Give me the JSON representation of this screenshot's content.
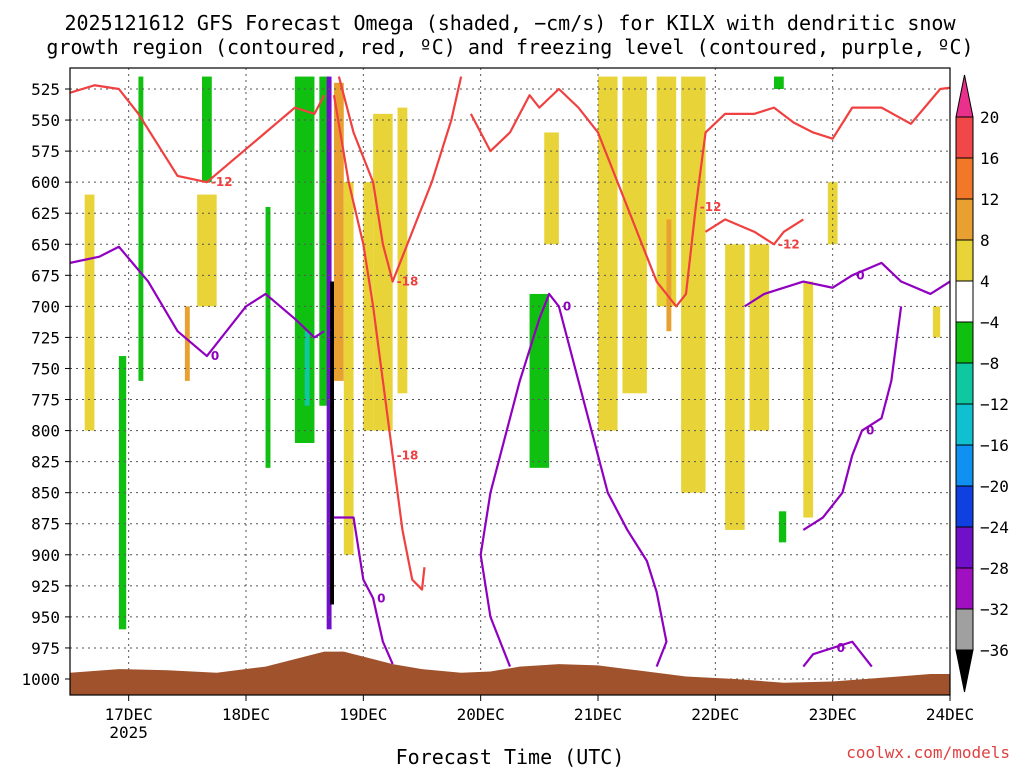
{
  "title": {
    "line1": "2025121612 GFS Forecast Omega (shaded, −cm/s) for KILX with dendritic snow",
    "line2": "growth region (contoured, red, ºC) and freezing level (contoured, purple, ºC)"
  },
  "credit": "coolwx.com/models",
  "colors": {
    "temp_contour": "#f04040",
    "freezing_contour": "#9000c0",
    "terrain": "#a0522d",
    "grid": "#555555"
  },
  "chart_data": {
    "type": "heatmap",
    "xlabel": "Forecast Time (UTC)",
    "ylabel": "",
    "x_ticks": [
      {
        "label": "17DEC",
        "sub": "2025",
        "hours_from_init": 12
      },
      {
        "label": "18DEC",
        "sub": "",
        "hours_from_init": 36
      },
      {
        "label": "19DEC",
        "sub": "",
        "hours_from_init": 60
      },
      {
        "label": "20DEC",
        "sub": "",
        "hours_from_init": 84
      },
      {
        "label": "21DEC",
        "sub": "",
        "hours_from_init": 108
      },
      {
        "label": "22DEC",
        "sub": "",
        "hours_from_init": 132
      },
      {
        "label": "23DEC",
        "sub": "",
        "hours_from_init": 156
      },
      {
        "label": "24DEC",
        "sub": "",
        "hours_from_init": 180
      }
    ],
    "xlim_hours": [
      0,
      180
    ],
    "y_ticks": [
      "525",
      "550",
      "575",
      "600",
      "625",
      "650",
      "675",
      "700",
      "725",
      "750",
      "775",
      "800",
      "825",
      "850",
      "875",
      "900",
      "925",
      "950",
      "975",
      "1000"
    ],
    "ylim_hpa": [
      510,
      1015
    ],
    "grid": true,
    "colorbar": {
      "levels": [
        "20",
        "16",
        "12",
        "8",
        "4",
        "−4",
        "−8",
        "−12",
        "−16",
        "−20",
        "−24",
        "−28",
        "−32",
        "−36"
      ],
      "colors": [
        "#e8308c",
        "#f04848",
        "#f07828",
        "#e8a030",
        "#e8d438",
        "#ffffff",
        "#10c010",
        "#10c8a0",
        "#10c0d0",
        "#1090f0",
        "#1040e0",
        "#7010c8",
        "#a010c0",
        "#a0a0a0",
        "#000000"
      ]
    },
    "shaded_regions": [
      {
        "value": 4,
        "color": "#e8d438",
        "t0": 3,
        "t1": 5,
        "p_top": 610,
        "p_bot": 800
      },
      {
        "value": -4,
        "color": "#10c010",
        "t0": 10,
        "t1": 11.5,
        "p_top": 740,
        "p_bot": 960
      },
      {
        "value": -4,
        "color": "#10c010",
        "t0": 14,
        "t1": 15,
        "p_top": 515,
        "p_bot": 760
      },
      {
        "value": -4,
        "color": "#10c010",
        "t0": 27,
        "t1": 29,
        "p_top": 515,
        "p_bot": 600
      },
      {
        "value": 4,
        "color": "#e8d438",
        "t0": 26,
        "t1": 30,
        "p_top": 610,
        "p_bot": 700
      },
      {
        "value": 8,
        "color": "#e8a030",
        "t0": 23.5,
        "t1": 24.5,
        "p_top": 700,
        "p_bot": 760
      },
      {
        "value": -4,
        "color": "#10c010",
        "t0": 40,
        "t1": 41,
        "p_top": 620,
        "p_bot": 830
      },
      {
        "value": -4,
        "color": "#10c010",
        "t0": 46,
        "t1": 50,
        "p_top": 515,
        "p_bot": 810
      },
      {
        "value": -4,
        "color": "#10c010",
        "t0": 51,
        "t1": 53,
        "p_top": 515,
        "p_bot": 780
      },
      {
        "value": -8,
        "color": "#10c8a0",
        "t0": 48,
        "t1": 49,
        "p_top": 720,
        "p_bot": 780
      },
      {
        "value": -28,
        "color": "#7010c8",
        "t0": 52.5,
        "t1": 53.5,
        "p_top": 515,
        "p_bot": 960
      },
      {
        "value": -36,
        "color": "#000000",
        "t0": 53.2,
        "t1": 54,
        "p_top": 680,
        "p_bot": 940
      },
      {
        "value": 8,
        "color": "#e8a030",
        "t0": 54,
        "t1": 56,
        "p_top": 520,
        "p_bot": 760
      },
      {
        "value": 4,
        "color": "#e8d438",
        "t0": 56,
        "t1": 58,
        "p_top": 600,
        "p_bot": 900
      },
      {
        "value": 4,
        "color": "#e8d438",
        "t0": 60,
        "t1": 62,
        "p_top": 600,
        "p_bot": 800
      },
      {
        "value": 4,
        "color": "#e8d438",
        "t0": 62,
        "t1": 66,
        "p_top": 545,
        "p_bot": 800
      },
      {
        "value": 4,
        "color": "#e8d438",
        "t0": 67,
        "t1": 69,
        "p_top": 540,
        "p_bot": 770
      },
      {
        "value": -4,
        "color": "#10c010",
        "t0": 94,
        "t1": 98,
        "p_top": 690,
        "p_bot": 830
      },
      {
        "value": 4,
        "color": "#e8d438",
        "t0": 97,
        "t1": 100,
        "p_top": 560,
        "p_bot": 650
      },
      {
        "value": 4,
        "color": "#e8d438",
        "t0": 108,
        "t1": 112,
        "p_top": 515,
        "p_bot": 800
      },
      {
        "value": 4,
        "color": "#e8d438",
        "t0": 113,
        "t1": 118,
        "p_top": 515,
        "p_bot": 770
      },
      {
        "value": 4,
        "color": "#e8d438",
        "t0": 120,
        "t1": 124,
        "p_top": 515,
        "p_bot": 700
      },
      {
        "value": 8,
        "color": "#e8a030",
        "t0": 122,
        "t1": 123,
        "p_top": 630,
        "p_bot": 720
      },
      {
        "value": 4,
        "color": "#e8d438",
        "t0": 125,
        "t1": 130,
        "p_top": 515,
        "p_bot": 850
      },
      {
        "value": 4,
        "color": "#e8d438",
        "t0": 134,
        "t1": 138,
        "p_top": 650,
        "p_bot": 880
      },
      {
        "value": 4,
        "color": "#e8d438",
        "t0": 139,
        "t1": 143,
        "p_top": 650,
        "p_bot": 800
      },
      {
        "value": 4,
        "color": "#e8d438",
        "t0": 150,
        "t1": 152,
        "p_top": 680,
        "p_bot": 870
      },
      {
        "value": 4,
        "color": "#e8d438",
        "t0": 155,
        "t1": 157,
        "p_top": 600,
        "p_bot": 650
      },
      {
        "value": -4,
        "color": "#10c010",
        "t0": 144,
        "t1": 146,
        "p_top": 515,
        "p_bot": 525
      },
      {
        "value": -8,
        "color": "#10c010",
        "t0": 145,
        "t1": 146.5,
        "p_top": 865,
        "p_bot": 890
      },
      {
        "value": 4,
        "color": "#e8d438",
        "t0": 176.5,
        "t1": 178,
        "p_top": 700,
        "p_bot": 725
      }
    ],
    "temp_contours": [
      {
        "label": "-12",
        "points": [
          [
            0,
            528
          ],
          [
            5,
            522
          ],
          [
            10,
            525
          ],
          [
            14,
            545
          ],
          [
            22,
            595
          ],
          [
            28,
            600
          ],
          [
            34,
            580
          ],
          [
            40,
            560
          ],
          [
            46,
            540
          ],
          [
            50,
            545
          ],
          [
            52,
            530
          ]
        ]
      },
      {
        "label": "-18",
        "points": [
          [
            54,
            530
          ],
          [
            57,
            600
          ],
          [
            60,
            650
          ],
          [
            62,
            700
          ],
          [
            64,
            760
          ],
          [
            66,
            820
          ],
          [
            68,
            880
          ],
          [
            70,
            920
          ],
          [
            72,
            928
          ],
          [
            72.5,
            910
          ]
        ]
      },
      {
        "label": "-18",
        "points": [
          [
            55,
            515
          ],
          [
            58,
            560
          ],
          [
            62,
            600
          ],
          [
            64,
            650
          ],
          [
            66,
            680
          ],
          [
            70,
            640
          ],
          [
            74,
            600
          ],
          [
            78,
            550
          ],
          [
            80,
            515
          ]
        ]
      },
      {
        "label": "-12",
        "points": [
          [
            82,
            545
          ],
          [
            86,
            575
          ],
          [
            90,
            560
          ],
          [
            94,
            530
          ],
          [
            96,
            540
          ],
          [
            100,
            525
          ],
          [
            104,
            540
          ],
          [
            108,
            560
          ],
          [
            112,
            600
          ],
          [
            116,
            640
          ],
          [
            120,
            680
          ],
          [
            124,
            700
          ],
          [
            126,
            690
          ],
          [
            128,
            620
          ],
          [
            130,
            560
          ],
          [
            134,
            545
          ],
          [
            140,
            545
          ],
          [
            144,
            540
          ],
          [
            148,
            552
          ],
          [
            152,
            560
          ],
          [
            156,
            565
          ],
          [
            160,
            540
          ],
          [
            166,
            540
          ],
          [
            172,
            553
          ],
          [
            178,
            525
          ],
          [
            180,
            524
          ]
        ]
      },
      {
        "label": "-12",
        "points": [
          [
            130,
            640
          ],
          [
            134,
            630
          ],
          [
            140,
            640
          ],
          [
            144,
            650
          ],
          [
            146,
            640
          ],
          [
            150,
            630
          ]
        ]
      }
    ],
    "freezing_contours": [
      {
        "label": "0",
        "points": [
          [
            0,
            665
          ],
          [
            6,
            660
          ],
          [
            10,
            652
          ],
          [
            16,
            680
          ],
          [
            22,
            720
          ],
          [
            28,
            740
          ],
          [
            36,
            700
          ],
          [
            40,
            690
          ],
          [
            46,
            710
          ],
          [
            50,
            725
          ],
          [
            52,
            720
          ]
        ]
      },
      {
        "label": "0",
        "points": [
          [
            54,
            870
          ],
          [
            58,
            870
          ],
          [
            60,
            920
          ],
          [
            62,
            935
          ],
          [
            64,
            970
          ],
          [
            66,
            988
          ]
        ]
      },
      {
        "label": "0",
        "points": [
          [
            90,
            990
          ],
          [
            86,
            950
          ],
          [
            84,
            900
          ],
          [
            86,
            850
          ],
          [
            88,
            820
          ],
          [
            92,
            760
          ],
          [
            96,
            710
          ],
          [
            98,
            690
          ],
          [
            100,
            700
          ],
          [
            104,
            760
          ],
          [
            110,
            850
          ],
          [
            114,
            880
          ],
          [
            118,
            905
          ],
          [
            120,
            930
          ],
          [
            122,
            970
          ],
          [
            120,
            990
          ]
        ]
      },
      {
        "label": "0",
        "points": [
          [
            138,
            700
          ],
          [
            142,
            690
          ],
          [
            150,
            680
          ],
          [
            156,
            685
          ],
          [
            160,
            675
          ],
          [
            166,
            665
          ],
          [
            170,
            680
          ],
          [
            176,
            690
          ],
          [
            180,
            680
          ]
        ]
      },
      {
        "label": "0",
        "points": [
          [
            150,
            880
          ],
          [
            154,
            870
          ],
          [
            158,
            850
          ],
          [
            160,
            820
          ],
          [
            162,
            800
          ],
          [
            166,
            790
          ],
          [
            168,
            760
          ],
          [
            170,
            700
          ]
        ]
      },
      {
        "label": "0",
        "points": [
          [
            150,
            990
          ],
          [
            152,
            980
          ],
          [
            156,
            975
          ],
          [
            160,
            970
          ],
          [
            164,
            990
          ]
        ]
      }
    ],
    "terrain_top_hpa": [
      [
        0,
        995
      ],
      [
        10,
        992
      ],
      [
        20,
        993
      ],
      [
        30,
        995
      ],
      [
        40,
        990
      ],
      [
        48,
        982
      ],
      [
        52,
        978
      ],
      [
        56,
        978
      ],
      [
        60,
        982
      ],
      [
        66,
        988
      ],
      [
        72,
        992
      ],
      [
        80,
        995
      ],
      [
        86,
        994
      ],
      [
        92,
        990
      ],
      [
        100,
        988
      ],
      [
        108,
        989
      ],
      [
        114,
        992
      ],
      [
        120,
        995
      ],
      [
        126,
        998
      ],
      [
        136,
        1000
      ],
      [
        146,
        1003
      ],
      [
        156,
        1002
      ],
      [
        166,
        999
      ],
      [
        176,
        996
      ],
      [
        180,
        996
      ]
    ]
  }
}
